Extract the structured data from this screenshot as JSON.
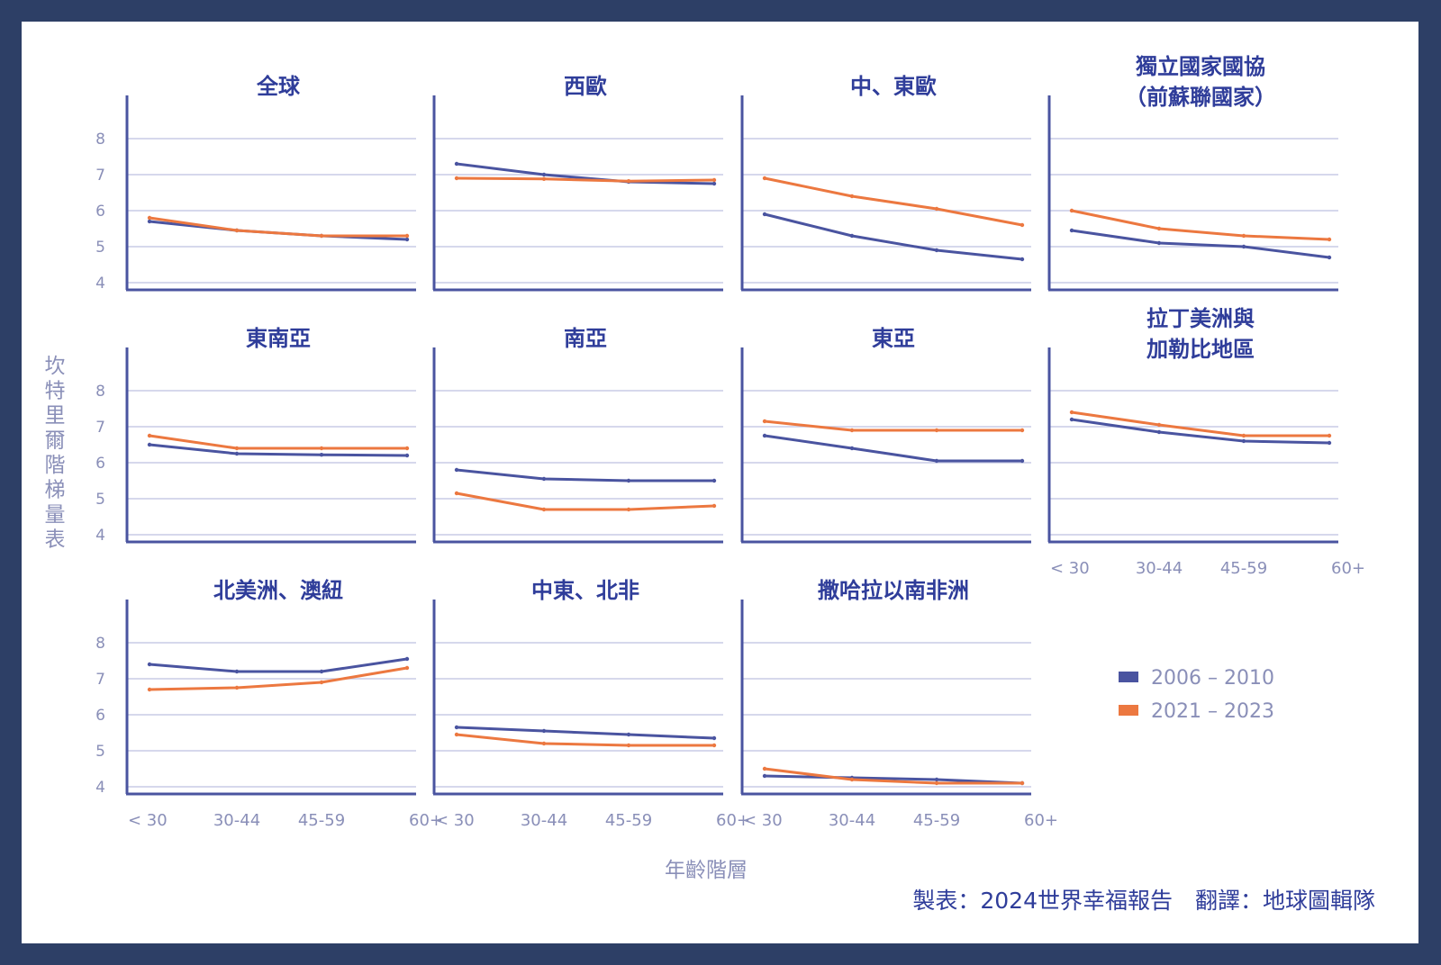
{
  "figure": {
    "ylabel": "坎特里爾階梯量表",
    "xlabel": "年齡階層",
    "credit": "製表：2024世界幸福報告　翻譯：地球圖輯隊",
    "legend": [
      {
        "label": "2006 – 2010",
        "color": "#4a54a0"
      },
      {
        "label": "2021 – 2023",
        "color": "#ec7840"
      }
    ]
  },
  "chart_data": [
    {
      "type": "line",
      "title": [
        "全球"
      ],
      "categories": [
        "< 30",
        "30-44",
        "45-59",
        "60+"
      ],
      "ylim": [
        4,
        8.4
      ],
      "yticks": [
        "8",
        "7",
        "6",
        "5",
        "4"
      ],
      "show_xticks": false,
      "series": [
        {
          "name": "2006 – 2010",
          "values": [
            5.7,
            5.45,
            5.3,
            5.2
          ]
        },
        {
          "name": "2021 – 2023",
          "values": [
            5.8,
            5.45,
            5.3,
            5.3
          ]
        }
      ]
    },
    {
      "type": "line",
      "title": [
        "西歐"
      ],
      "categories": [
        "< 30",
        "30-44",
        "45-59",
        "60+"
      ],
      "ylim": [
        4,
        8.4
      ],
      "yticks": [],
      "show_xticks": false,
      "series": [
        {
          "name": "2006 – 2010",
          "values": [
            7.3,
            7.0,
            6.8,
            6.75
          ]
        },
        {
          "name": "2021 – 2023",
          "values": [
            6.9,
            6.88,
            6.82,
            6.85
          ]
        }
      ]
    },
    {
      "type": "line",
      "title": [
        "中、東歐"
      ],
      "categories": [
        "< 30",
        "30-44",
        "45-59",
        "60+"
      ],
      "ylim": [
        4,
        8.4
      ],
      "yticks": [],
      "show_xticks": false,
      "series": [
        {
          "name": "2006 – 2010",
          "values": [
            5.9,
            5.3,
            4.9,
            4.65
          ]
        },
        {
          "name": "2021 – 2023",
          "values": [
            6.9,
            6.4,
            6.05,
            5.6
          ]
        }
      ]
    },
    {
      "type": "line",
      "title": [
        "獨立國家國協",
        "（前蘇聯國家）"
      ],
      "categories": [
        "< 30",
        "30-44",
        "45-59",
        "60+"
      ],
      "ylim": [
        4,
        8.4
      ],
      "yticks": [],
      "show_xticks": false,
      "series": [
        {
          "name": "2006 – 2010",
          "values": [
            5.45,
            5.1,
            5.0,
            4.7
          ]
        },
        {
          "name": "2021 – 2023",
          "values": [
            6.0,
            5.5,
            5.3,
            5.2
          ]
        }
      ]
    },
    {
      "type": "line",
      "title": [
        "東南亞"
      ],
      "categories": [
        "< 30",
        "30-44",
        "45-59",
        "60+"
      ],
      "ylim": [
        4,
        8.4
      ],
      "yticks": [
        "8",
        "7",
        "6",
        "5",
        "4"
      ],
      "show_xticks": false,
      "series": [
        {
          "name": "2006 – 2010",
          "values": [
            6.5,
            6.25,
            6.22,
            6.2
          ]
        },
        {
          "name": "2021 – 2023",
          "values": [
            6.75,
            6.4,
            6.4,
            6.4
          ]
        }
      ]
    },
    {
      "type": "line",
      "title": [
        "南亞"
      ],
      "categories": [
        "< 30",
        "30-44",
        "45-59",
        "60+"
      ],
      "ylim": [
        4,
        8.4
      ],
      "yticks": [],
      "show_xticks": false,
      "series": [
        {
          "name": "2006 – 2010",
          "values": [
            5.8,
            5.55,
            5.5,
            5.5
          ]
        },
        {
          "name": "2021 – 2023",
          "values": [
            5.15,
            4.7,
            4.7,
            4.8
          ]
        }
      ]
    },
    {
      "type": "line",
      "title": [
        "東亞"
      ],
      "categories": [
        "< 30",
        "30-44",
        "45-59",
        "60+"
      ],
      "ylim": [
        4,
        8.4
      ],
      "yticks": [],
      "show_xticks": false,
      "series": [
        {
          "name": "2006 – 2010",
          "values": [
            6.75,
            6.4,
            6.05,
            6.05
          ]
        },
        {
          "name": "2021 – 2023",
          "values": [
            7.15,
            6.9,
            6.9,
            6.9
          ]
        }
      ]
    },
    {
      "type": "line",
      "title": [
        "拉丁美洲與",
        "加勒比地區"
      ],
      "categories": [
        "< 30",
        "30-44",
        "45-59",
        "60+"
      ],
      "ylim": [
        4,
        8.4
      ],
      "yticks": [],
      "show_xticks": true,
      "series": [
        {
          "name": "2006 – 2010",
          "values": [
            7.2,
            6.85,
            6.6,
            6.55
          ]
        },
        {
          "name": "2021 – 2023",
          "values": [
            7.4,
            7.05,
            6.75,
            6.75
          ]
        }
      ]
    },
    {
      "type": "line",
      "title": [
        "北美洲、澳紐"
      ],
      "categories": [
        "< 30",
        "30-44",
        "45-59",
        "60+"
      ],
      "ylim": [
        4,
        8.4
      ],
      "yticks": [
        "8",
        "7",
        "6",
        "5",
        "4"
      ],
      "show_xticks": true,
      "series": [
        {
          "name": "2006 – 2010",
          "values": [
            7.4,
            7.2,
            7.2,
            7.55
          ]
        },
        {
          "name": "2021 – 2023",
          "values": [
            6.7,
            6.75,
            6.9,
            7.3
          ]
        }
      ]
    },
    {
      "type": "line",
      "title": [
        "中東、北非"
      ],
      "categories": [
        "< 30",
        "30-44",
        "45-59",
        "60+"
      ],
      "ylim": [
        4,
        8.4
      ],
      "yticks": [],
      "show_xticks": true,
      "series": [
        {
          "name": "2006 – 2010",
          "values": [
            5.65,
            5.55,
            5.45,
            5.35
          ]
        },
        {
          "name": "2021 – 2023",
          "values": [
            5.45,
            5.2,
            5.15,
            5.15
          ]
        }
      ]
    },
    {
      "type": "line",
      "title": [
        "撒哈拉以南非洲"
      ],
      "categories": [
        "< 30",
        "30-44",
        "45-59",
        "60+"
      ],
      "ylim": [
        4,
        8.4
      ],
      "yticks": [],
      "show_xticks": true,
      "series": [
        {
          "name": "2006 – 2010",
          "values": [
            4.3,
            4.25,
            4.2,
            4.1
          ]
        },
        {
          "name": "2021 – 2023",
          "values": [
            4.5,
            4.2,
            4.1,
            4.1
          ]
        }
      ]
    }
  ]
}
